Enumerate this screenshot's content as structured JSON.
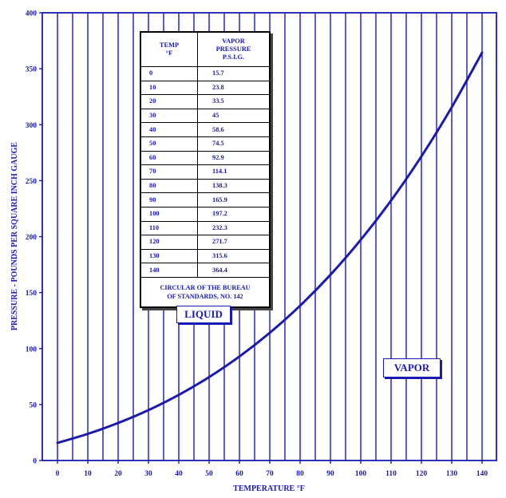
{
  "chart_data": {
    "type": "line",
    "xlabel": "TEMPERATURE °F",
    "ylabel": "PRESSURE - POUNDS PER SQUARE INCH GAUGE",
    "xlim": [
      0,
      140
    ],
    "ylim": [
      0,
      400
    ],
    "x_ticks": [
      "0",
      "10",
      "20",
      "30",
      "40",
      "50",
      "60",
      "70",
      "80",
      "90",
      "100",
      "110",
      "120",
      "130",
      "140"
    ],
    "y_ticks": [
      "0",
      "50",
      "100",
      "150",
      "200",
      "250",
      "300",
      "350",
      "400"
    ],
    "grid": "vertical lines every 5 °F",
    "series": [
      {
        "x": [
          0,
          10,
          20,
          30,
          40,
          50,
          60,
          70,
          80,
          90,
          100,
          110,
          120,
          130,
          140
        ],
        "values": [
          15.7,
          23.8,
          33.5,
          45,
          58.6,
          74.5,
          92.9,
          114.1,
          138.3,
          165.9,
          197.2,
          232.3,
          271.7,
          315.6,
          364.4
        ]
      }
    ],
    "annotations": [
      "LIQUID",
      "VAPOR"
    ]
  },
  "table": {
    "header_temp": [
      "TEMP",
      "°F"
    ],
    "header_pressure": [
      "VAPOR",
      "PRESSURE",
      "P.S.I.G."
    ],
    "rows": [
      {
        "temp": "0",
        "pressure": "15.7"
      },
      {
        "temp": "10",
        "pressure": "23.8"
      },
      {
        "temp": "20",
        "pressure": "33.5"
      },
      {
        "temp": "30",
        "pressure": "45"
      },
      {
        "temp": "40",
        "pressure": "58.6"
      },
      {
        "temp": "50",
        "pressure": "74.5"
      },
      {
        "temp": "60",
        "pressure": "92.9"
      },
      {
        "temp": "70",
        "pressure": "114.1"
      },
      {
        "temp": "80",
        "pressure": "138.3"
      },
      {
        "temp": "90",
        "pressure": "165.9"
      },
      {
        "temp": "100",
        "pressure": "197.2"
      },
      {
        "temp": "110",
        "pressure": "232.3"
      },
      {
        "temp": "120",
        "pressure": "271.7"
      },
      {
        "temp": "130",
        "pressure": "315.6"
      },
      {
        "temp": "140",
        "pressure": "364.4"
      }
    ],
    "source_lines": [
      "CIRCULAR OF THE BUREAU",
      "OF STANDARDS, NO. 142"
    ]
  },
  "labels": {
    "liquid": "LIQUID",
    "vapor": "VAPOR"
  },
  "colors": {
    "ink": "#1a1ab0",
    "grid": "#1a1ab0",
    "curve": "#1a1ab0"
  }
}
